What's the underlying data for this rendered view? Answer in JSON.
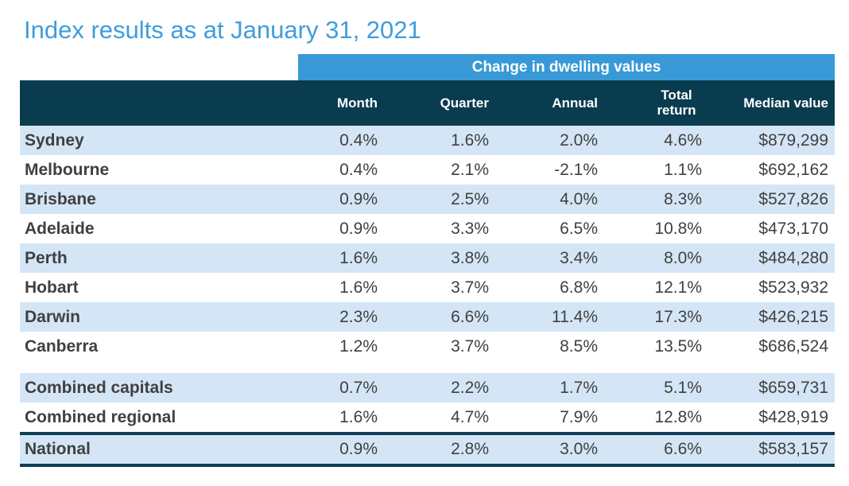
{
  "title": "Index results as at January 31, 2021",
  "table": {
    "band_label": "Change in dwelling values",
    "columns": {
      "month": "Month",
      "quarter": "Quarter",
      "annual": "Annual",
      "total_return": "Total return",
      "median_value": "Median value"
    },
    "rows": [
      {
        "region": "Sydney",
        "month": "0.4%",
        "quarter": "1.6%",
        "annual": "2.0%",
        "total_return": "4.6%",
        "median_value": "$879,299"
      },
      {
        "region": "Melbourne",
        "month": "0.4%",
        "quarter": "2.1%",
        "annual": "-2.1%",
        "total_return": "1.1%",
        "median_value": "$692,162"
      },
      {
        "region": "Brisbane",
        "month": "0.9%",
        "quarter": "2.5%",
        "annual": "4.0%",
        "total_return": "8.3%",
        "median_value": "$527,826"
      },
      {
        "region": "Adelaide",
        "month": "0.9%",
        "quarter": "3.3%",
        "annual": "6.5%",
        "total_return": "10.8%",
        "median_value": "$473,170"
      },
      {
        "region": "Perth",
        "month": "1.6%",
        "quarter": "3.8%",
        "annual": "3.4%",
        "total_return": "8.0%",
        "median_value": "$484,280"
      },
      {
        "region": "Hobart",
        "month": "1.6%",
        "quarter": "3.7%",
        "annual": "6.8%",
        "total_return": "12.1%",
        "median_value": "$523,932"
      },
      {
        "region": "Darwin",
        "month": "2.3%",
        "quarter": "6.6%",
        "annual": "11.4%",
        "total_return": "17.3%",
        "median_value": "$426,215"
      },
      {
        "region": "Canberra",
        "month": "1.2%",
        "quarter": "3.7%",
        "annual": "8.5%",
        "total_return": "13.5%",
        "median_value": "$686,524"
      }
    ],
    "summary_rows": [
      {
        "region": "Combined capitals",
        "month": "0.7%",
        "quarter": "2.2%",
        "annual": "1.7%",
        "total_return": "5.1%",
        "median_value": "$659,731"
      },
      {
        "region": "Combined regional",
        "month": "1.6%",
        "quarter": "4.7%",
        "annual": "7.9%",
        "total_return": "12.8%",
        "median_value": "$428,919"
      }
    ],
    "national": {
      "region": "National",
      "month": "0.9%",
      "quarter": "2.8%",
      "annual": "3.0%",
      "total_return": "6.6%",
      "median_value": "$583,157"
    }
  },
  "colors": {
    "title_blue": "#3F9DDC",
    "band_blue": "#3899D6",
    "header_teal": "#093C4E",
    "alt_row_blue": "#D4E6F5",
    "national_border": "#0F3D57",
    "body_text": "#404040"
  }
}
